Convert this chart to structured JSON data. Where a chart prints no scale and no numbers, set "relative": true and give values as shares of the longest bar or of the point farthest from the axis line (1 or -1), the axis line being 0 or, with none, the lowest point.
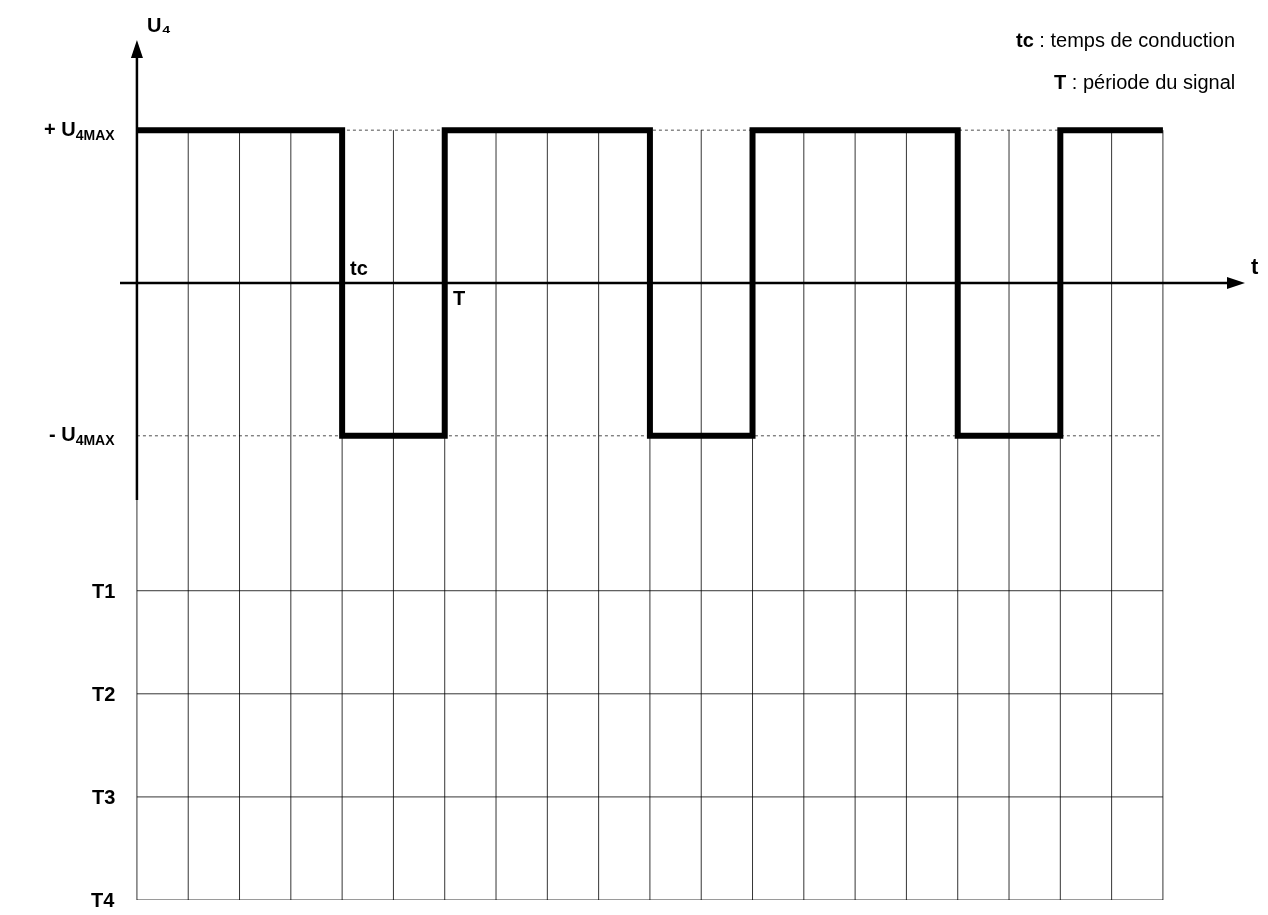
{
  "chart_data": [
    {
      "type": "step",
      "relative": true,
      "xlabel": "t",
      "ylabel": "U₄",
      "annotations": [
        "tc : temps de conduction",
        "T : période du signal",
        "tc",
        "T"
      ],
      "categories": [
        null,
        null,
        null,
        null,
        null,
        null,
        null,
        null,
        null,
        null,
        null,
        null,
        null,
        null,
        null,
        null,
        null,
        null,
        null,
        null,
        null
      ],
      "values": [
        1,
        1,
        1,
        1,
        -1,
        -1,
        1,
        1,
        1,
        1,
        -1,
        -1,
        1,
        1,
        1,
        1,
        -1,
        -1,
        1,
        1,
        1
      ],
      "color": "#000000",
      "line_style": "solid",
      "ref_lines": [
        {
          "axis": "y",
          "value": 0,
          "line_style": "solid"
        },
        {
          "axis": "y",
          "value": 1,
          "label": "+ U$_{4MAX}$",
          "line_style": "dotted"
        },
        {
          "axis": "y",
          "value": -1,
          "label": "- U$_{4MAX}$",
          "line_style": "dotted"
        }
      ],
      "grid": "x",
      "tick_labels": false
    },
    {
      "type": "other",
      "annotations": [
        "T1",
        "T2",
        "T3",
        "T4"
      ],
      "categories": [
        null,
        null,
        null,
        null,
        null,
        null,
        null,
        null,
        null,
        null,
        null,
        null,
        null,
        null,
        null,
        null,
        null,
        null,
        null,
        null,
        null
      ]
    }
  ]
}
